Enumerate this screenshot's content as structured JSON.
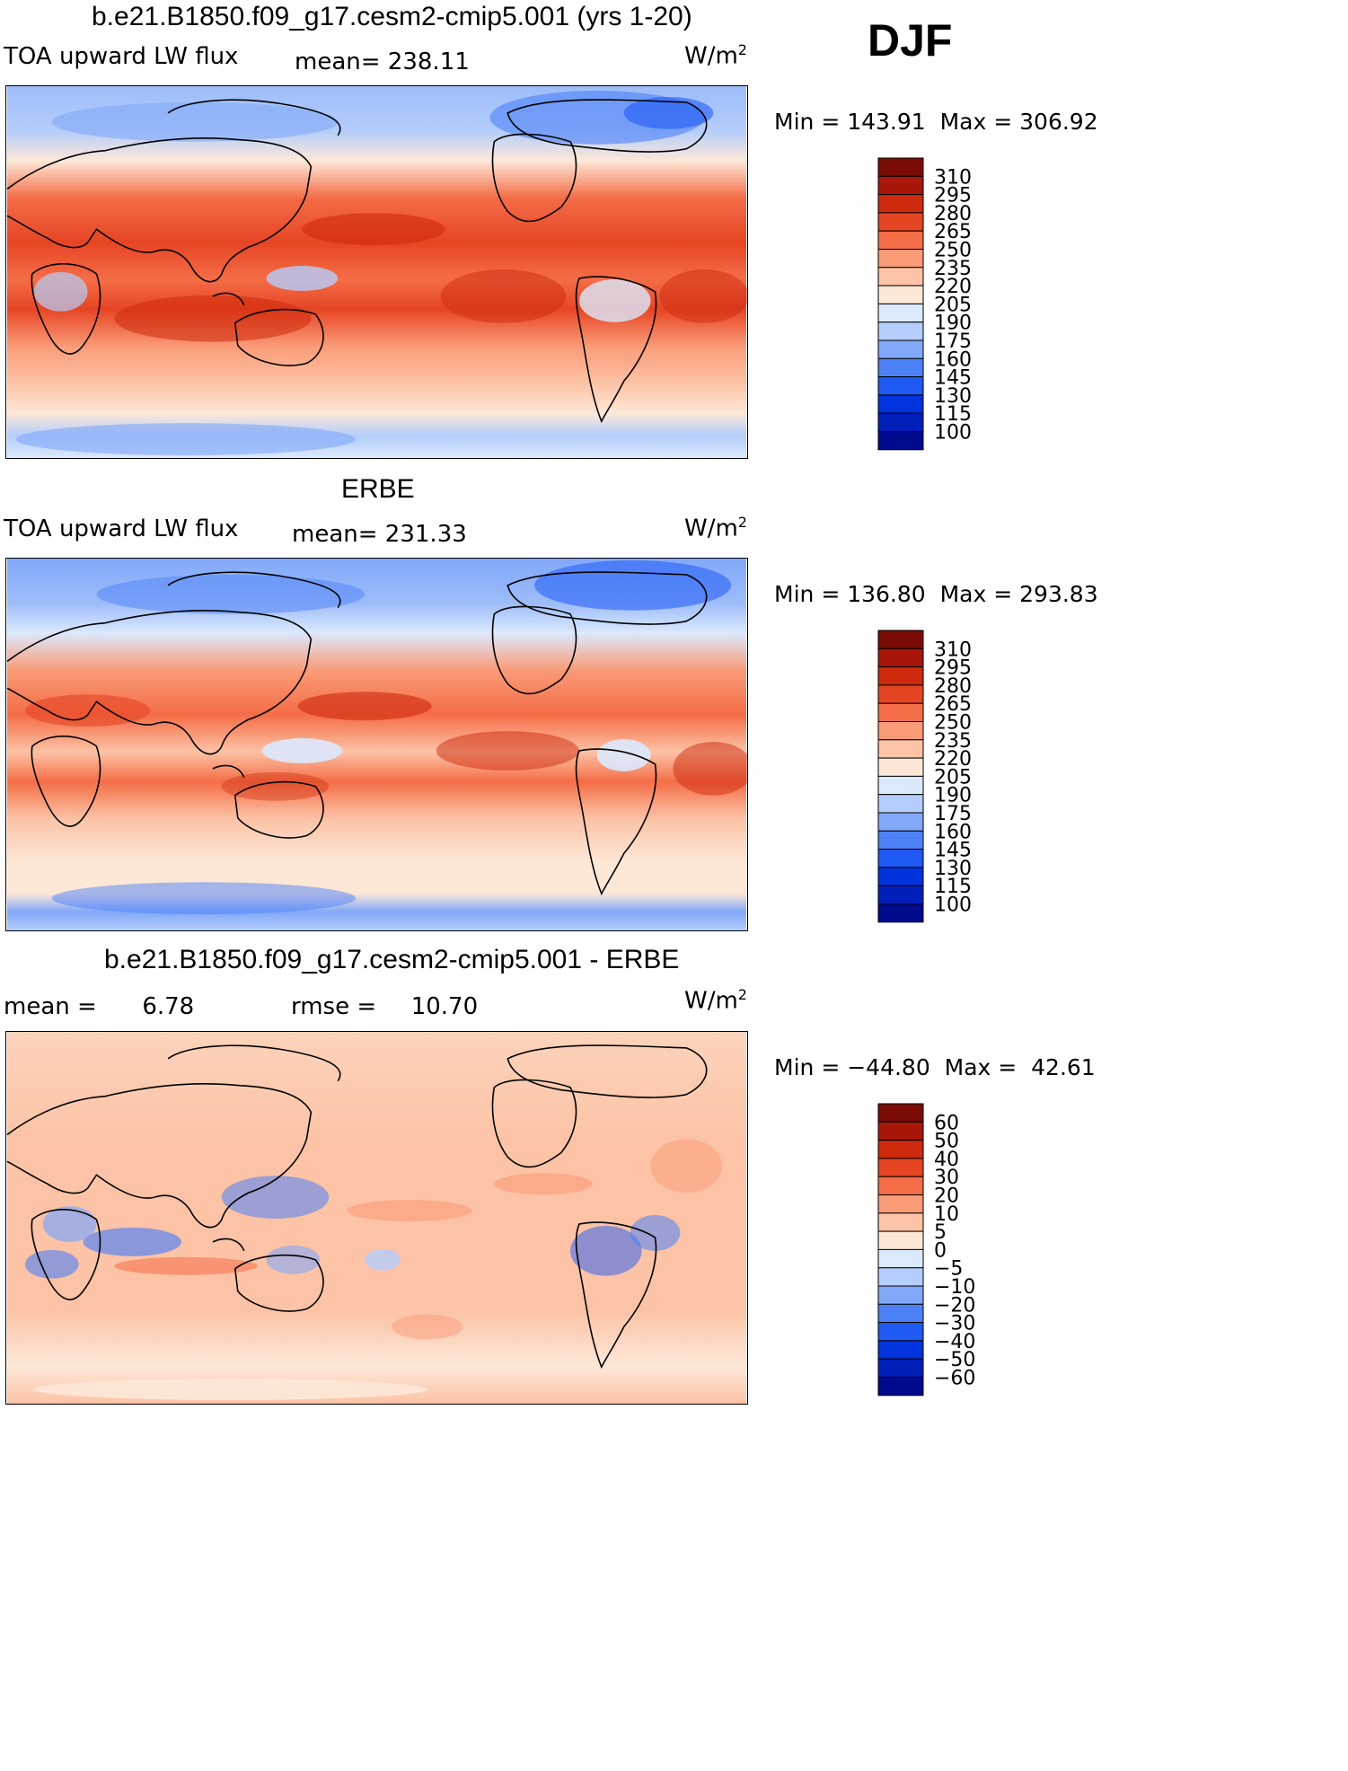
{
  "season": "DJF",
  "colors": {
    "abs_scale": [
      "#000a8c",
      "#001fb9",
      "#0033dd",
      "#1f5af5",
      "#4d81f7",
      "#81a8f9",
      "#b4cdfb",
      "#dbe9fd",
      "#fde8d8",
      "#fcc3a6",
      "#fa9b78",
      "#f46d47",
      "#e64524",
      "#ce2a0d",
      "#a8170a",
      "#7a0b05"
    ],
    "diff_scale": [
      "#000a8c",
      "#001fb9",
      "#0033dd",
      "#1f5af5",
      "#4d81f7",
      "#81a8f9",
      "#b4cdfb",
      "#dbe9fd",
      "#fde8d8",
      "#fcc3a6",
      "#fa9b78",
      "#f46d47",
      "#e64524",
      "#ce2a0d",
      "#a8170a",
      "#7a0b05"
    ]
  },
  "panels": [
    {
      "title": "b.e21.B1850.f09_g17.cesm2-cmip5.001 (yrs 1-20)",
      "left_label": "TOA upward LW flux",
      "mean_label": "mean=",
      "mean_value": "238.11",
      "units": "W/m",
      "units_sup": "2",
      "minmax": {
        "min_label": "Min",
        "min_value": "143.91",
        "max_label": "Max",
        "max_value": "306.92"
      },
      "legend_ticks": [
        "310",
        "295",
        "280",
        "265",
        "250",
        "235",
        "220",
        "205",
        "190",
        "175",
        "160",
        "145",
        "130",
        "115",
        "100"
      ]
    },
    {
      "title": "ERBE",
      "left_label": "TOA upward LW flux",
      "mean_label": "mean=",
      "mean_value": "231.33",
      "units": "W/m",
      "units_sup": "2",
      "minmax": {
        "min_label": "Min",
        "min_value": "136.80",
        "max_label": "Max",
        "max_value": "293.83"
      },
      "legend_ticks": [
        "310",
        "295",
        "280",
        "265",
        "250",
        "235",
        "220",
        "205",
        "190",
        "175",
        "160",
        "145",
        "130",
        "115",
        "100"
      ]
    },
    {
      "title": "b.e21.B1850.f09_g17.cesm2-cmip5.001 - ERBE",
      "mean_label": "mean =",
      "mean_value": "6.78",
      "rmse_label": "rmse =",
      "rmse_value": "10.70",
      "units": "W/m",
      "units_sup": "2",
      "minmax": {
        "min_label": "Min",
        "min_value": "−44.80",
        "max_label": "Max",
        "max_value": "42.61"
      },
      "legend_ticks": [
        "60",
        "50",
        "40",
        "30",
        "20",
        "10",
        "5",
        "0",
        "−5",
        "−10",
        "−20",
        "−30",
        "−40",
        "−50",
        "−60"
      ]
    }
  ]
}
